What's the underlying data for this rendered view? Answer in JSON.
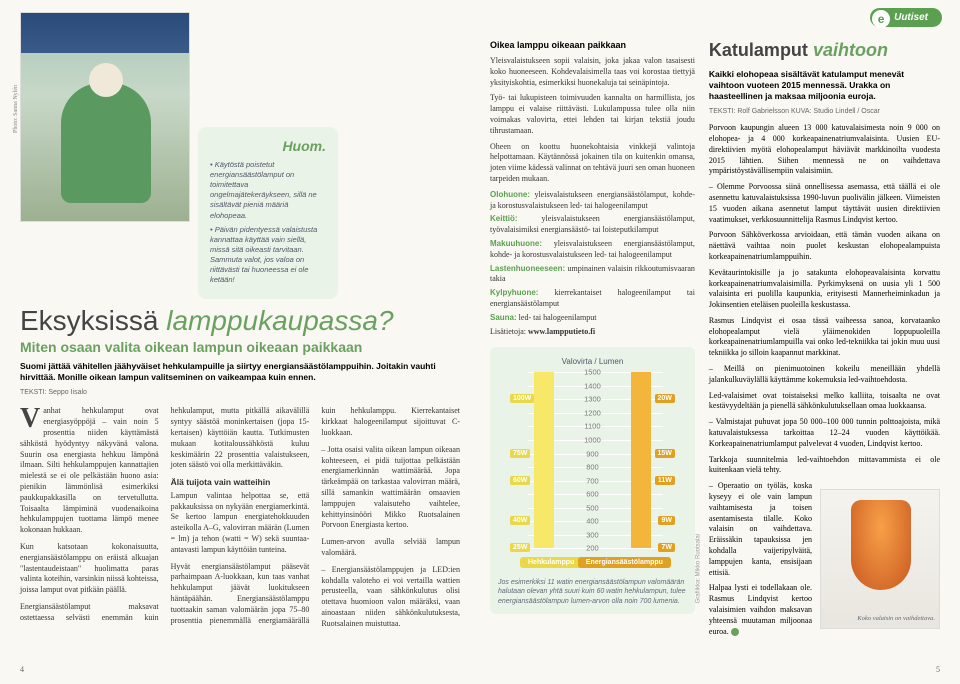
{
  "badge": {
    "label": "Uutiset",
    "letter": "e"
  },
  "left": {
    "photo_credit": "Photo: Sanna Nylén",
    "huom": {
      "title": "Huom.",
      "p1": "• Käytöstä poistetut energiansäästölamput on toimitettava ongelmajätekeräykseen, sillä ne sisältävät pieniä määriä elohopeaa.",
      "p2": "• Päivän pidentyessä valaistusta kannattaa käyttää vain siellä, missä sitä oikeasti tarvitaan. Sammuta valot, jos valoa on riittävästi tai huoneessa ei ole ketään!"
    },
    "title1": "Eksyksissä",
    "title2": "lamppukaupassa?",
    "subtitle": "Miten osaan valita oikean lampun oikeaan paikkaan",
    "intro": "Suomi jättää vähitellen jäähyväiset hehkulampuille ja siirtyy energiansäästölamppuihin. Joitakin vauhti hirvittää. Monille oikean lampun valitseminen on vaikeampaa kuin ennen.",
    "byline": "TEKSTI: Seppo Iisalo",
    "body": {
      "p1": "Vanhat hehkulamput ovat energiasyöppöjä – vain noin 5 prosenttia niiden käyttämästä sähköstä hyödyntyy näkyvänä valona. Suurin osa energiasta hehkuu lämpönä ilmaan. Silti hehkulamppujen kannattajien mielestä se ei ole pelkästään huono asia: pienikin lämmönlisä esimerkiksi paukkupakkasilla on tervetullutta. Toisaalta lämpiminä vuodenaikoina hehkulamppujen tuottama lämpö menee kokonaan hukkaan.",
      "p2": "Kun katsotaan kokonaisuutta, energiansäästölamppu on eräistä alkuajan \"lastentaudeistaan\" huolimatta paras valinta koteihin, varsinkin niissä kohteissa, joissa lamput ovat pitkään päällä.",
      "p3": "Energiansäästölamput maksavat ostettaessa selvästi enemmän kuin hehkulamput, mutta pitkällä aikavälillä syntyy säästöä moninkertaisen (jopa 15-kertaisen) käyttöiän kautta. Tutkimusten mukaan kotitaloussähköstä kuluu keskimäärin 22 prosenttia valaistukseen, joten säästö voi olla merkittäväkin.",
      "h4": "Älä tuijota vain watteihin",
      "p4": "Lampun valintaa helpottaa se, että pakkauksissa on nykyään energiamerkintä. Se kertoo lampun energiatehokkuuden asteikolla A–G, valovirran määrän (Lumen = lm) ja tehon (watti = W) sekä suuntaa-antavasti lampun käyttöiän tunteina.",
      "p5": "Hyvät energiansäästölamput pääsevät parhaimpaan A-luokkaan, kun taas vanhat hehkulamput jäävät luokitukseen häntäpäähän. Energiansäästölamppu tuottaakin saman valomäärän jopa 75–80 prosenttia pienemmällä energiamäärällä kuin hehkulamppu. Kierrekantaiset kirkkaat halogeenilamput sijoittuvat C-luokkaan.",
      "p6": "– Jotta osaisi valita oikean lampun oikeaan kohteeseen, ei pidä tuijottaa pelkästään energiamerkinnän wattimäärää. Jopa tärkeämpää on tarkastaa valovirran määrä, sillä samankin wattimäärän omaavien lamppujen valaisuteho vaihtelee, kehittyinsinööri Mikko Ruotsalainen Porvoon Energiasta kertoo.",
      "p7": "Lumen-arvon avulla selviää lampun valomäärä.",
      "p8": "– Energiansäästölamppujen ja LED:ien kohdalla valoteho ei voi vertailla wattien perusteella, vaan sähkönkulutus olisi otettava huomioon valon määräksi, vaan ainoastaan niiden sähkönkulutuksesta, Ruotsalainen muistuttaa."
    },
    "pagenum": "4"
  },
  "right": {
    "col_a": {
      "heading": "Oikea lamppu oikeaan paikkaan",
      "p1": "Yleisvalaistukseen sopii valaisin, joka jakaa valon tasaisesti koko huoneeseen. Kohdevalaisimella taas voi korostaa tiettyjä yksityiskohtia, esimerkiksi huonekaluja tai seinäpintoja.",
      "p2": "Työ- tai lukupisteen toimivuuden kannalta on harmillista, jos lamppu ei valaise riittävästi. Lukulampussa tulee olla niin voimakas valovirta, ettei lehden tai kirjan tekstiä joudu tihrustamaan.",
      "p3": "Oheen on koottu huonekohtaisia vinkkejä valintoja helpottamaan. Käytännössä jokainen tila on kuitenkin omansa, joten viime kädessä valinnat on tehtävä juuri sen oman huoneen tarpeiden mukaan.",
      "rooms": {
        "olohuone": {
          "label": "Olohuone:",
          "text": " yleisvalaistukseen energiansäästölamput, kohde- ja korostusvalaistukseen led- tai halogeenilamput"
        },
        "keittio": {
          "label": "Keittiö:",
          "text": " yleisvalaistukseen energiansäästölamput, työvalaisimiksi energiansäästö- tai loisteputkilamput"
        },
        "makuuhuone": {
          "label": "Makuuhuone:",
          "text": " yleisvalaistukseen energiansäästölamput, kohde- ja korostusvalaistukseen led- tai halogeenilamput"
        },
        "lasten": {
          "label": "Lastenhuoneeseen:",
          "text": " umpinainen valaisin rikkoutumisvaaran takia"
        },
        "kylpy": {
          "label": "Kylpyhuone:",
          "text": " kierrekantaiset halogeenilamput tai energiansäästölamput"
        },
        "sauna": {
          "label": "Sauna:",
          "text": " led- tai halogeenilamput"
        }
      },
      "linklabel": "Lisätietoja: ",
      "linkurl": "www.lampputieto.fi"
    },
    "chart": {
      "type": "bar-pair-scale",
      "title": "Valovirta / Lumen",
      "left_label": "Hehkulamppu",
      "right_label": "Energiansäästölamppu",
      "credit": "Grafiikka: Mikko Ruotsalai",
      "ymin": 200,
      "ymax": 1500,
      "ystep": 100,
      "ticks": [
        1500,
        1400,
        1300,
        1200,
        1100,
        1000,
        900,
        800,
        700,
        600,
        500,
        400,
        300,
        200
      ],
      "left_color": "#f7e86a",
      "right_color": "#f4b63a",
      "left_badge_color": "#e8d84a",
      "right_badge_color": "#e0a020",
      "grid_color": "#ffffff",
      "bg_color": "#eaf3e8",
      "pairs": [
        {
          "lumen": 1300,
          "hw": "100W",
          "ew": "20W"
        },
        {
          "lumen": 900,
          "hw": "75W",
          "ew": "15W"
        },
        {
          "lumen": 700,
          "hw": "60W",
          "ew": "11W"
        },
        {
          "lumen": 400,
          "hw": "40W",
          "ew": "9W"
        },
        {
          "lumen": 200,
          "hw": "25W",
          "ew": "7W"
        }
      ],
      "caption": "Jos esimerkiksi 11 watin energiansäästölampun valomäärän halutaan olevan yhtä suuri kuin 60 watin hehkulampun, tulee energiansäästölampun lumen-arvon olla noin 700 lumenia."
    },
    "col_b": {
      "title1": "Katulamput",
      "title2": "vaihtoon",
      "intro": "Kaikki elohopeaa sisältävät katulamput menevät vaihtoon vuoteen 2015 mennessä. Urakka on haasteellinen ja maksaa miljoonia euroja.",
      "byline": "TEKSTI: Rolf Gabrielsson   KUVA: Studio Lindell / Oscar",
      "p1": "Porvoon kaupungin alueen 13 000 katuvalaisimesta noin 9 000 on elohopea- ja 4 000 korkeapainenatriumvalaisinta. Uusien EU-direktiivien myötä elohopealamput häviävät markkinoilta vuodesta 2015 lähtien. Siihen mennessä ne on vaihdettava ympäristöystävällisempiin valaisimiin.",
      "p2": "– Olemme Porvoossa siinä onnellisessa asemassa, että täällä ei ole asennettu katuvalaistuksissa 1990-luvun puolivälin jälkeen. Viimeisten 15 vuoden aikana asennetut lamput täyttävät uusien direktiivien vaatimukset, verkkosuunnittelija Rasmus Lindqvist kertoo.",
      "p3": "Porvoon Sähköverkossa arvioidaan, että tämän vuoden aikana on näettävä vaihtaa noin puolet keskustan elohopealampuista korkeapainenatriumlamppuihin.",
      "p4": "Kevätaurintokisille ja jo satakunta elohopeavalaisinta korvattu korkeapainenatriumvalaisimilla. Pyrkimyksenä on uusia yli 1 500 valaisinta eri puolilla kaupunkia, erityisesti Mannerheiminkadun ja Jokinsentien eteläisen puoleilla keskustassa.",
      "p5": "Rasmus Lindqvist ei osaa tässä vaiheessa sanoa, korvataanko elohopealamput vielä yläimenokiden loppupuoleilla korkeapainenatriumlampuilla vai onko led-tekniikka tai jokin muu uusi tekniikka jo silloin kaapannut markkinat.",
      "p6": "– Meillä on pienimuotoinen kokeilu meneillään yhdellä jalankulkuväylällä käyttämme kokemuksia led-vaihtoehdosta.",
      "p7": "Led-valaisimet ovat toistaiseksi melko kalliita, toisaalta ne ovat kestävyydeltään ja pienellä sähkönkulutuksellaan omaa luokkaansa.",
      "p8": "– Valmistajat puhuvat jopa 50 000–100 000 tunnin polttoajoista, mikä katuvalaistuksessa tarkoittaa 12–24 vuoden käyttöikää. Korkeapainenatriumlamput palvelevat 4 vuoden, Lindqvist kertoo.",
      "p9": "Tarkkoja suunnitelmia led-vaihtoehdon mittavammista ei ole kuitenkaan vielä tehty.",
      "p10": "– Operaatio on työläs, koska kyseyy ei ole vain lampun vaihtamisesta ja toisen asentamisesta tilalle. Koko valaisin on vaihdettava. Eräissäkin tapauksissa jen kohdalla vaijeripylväitä, lamppujen kanta, ensisijaan ettisiä.",
      "p11": "Halpaa lysti ei todellakaan ole. Rasmus Lindqvist kertoo valaisimien vaihdon maksavan yhteensä muutaman miljoonaa euroa.",
      "photo_caption": "Koko valaisin on vaihdettava."
    },
    "pagenum": "5"
  }
}
